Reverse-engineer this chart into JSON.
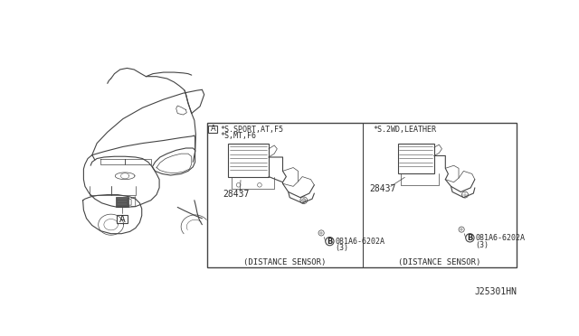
{
  "bg_color": "#ffffff",
  "fig_width": 6.4,
  "fig_height": 3.72,
  "dpi": 100,
  "diagram_ref": "J25301HN",
  "left_box": {
    "label_a": "A",
    "condition1": "*S.SPORT,AT,F5",
    "condition2": "*S,MT,F6",
    "part_number1": "28437",
    "bolt_label": "B",
    "bolt_part": "081A6-6202A",
    "bolt_qty": "(3)",
    "caption": "(DISTANCE SENSOR)"
  },
  "right_box": {
    "condition": "*S.2WD,LEATHER",
    "part_number1": "28437",
    "bolt_label": "B",
    "bolt_part": "081A6-6202A",
    "bolt_qty": "(3)",
    "caption": "(DISTANCE SENSOR)"
  },
  "callout_a": "A",
  "text_color": "#2a2a2a",
  "line_color": "#444444",
  "thin_line": 0.5,
  "medium_line": 0.8,
  "thick_line": 1.0
}
